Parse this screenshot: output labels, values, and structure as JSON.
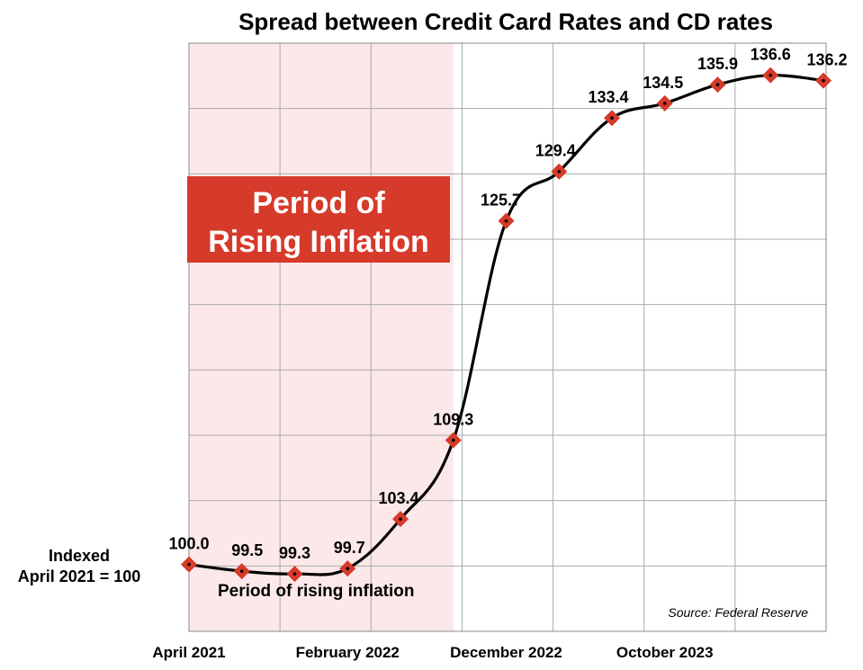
{
  "colors": {
    "shade": "#fce8e8",
    "grid": "#aaaaaa",
    "line": "#000000",
    "marker": "#d63a2a",
    "box": "#d63a2a",
    "box_text": "#ffffff"
  },
  "index_label": [
    "Indexed",
    "April 2021 = 100"
  ],
  "shaded_region_note": "Period of rising inflation",
  "callout": [
    "Period of",
    "Rising Inflation"
  ],
  "source": "Source: Federal Reserve",
  "chart_data": {
    "type": "line",
    "title": "Spread between Credit Card Rates and CD rates",
    "xlabel": "",
    "ylabel": "",
    "x_tick_labels": [
      "April 2021",
      "February 2022",
      "December 2022",
      "October 2023"
    ],
    "ylim": [
      95,
      139
    ],
    "grid": true,
    "series": [
      {
        "values": [
          100.0,
          99.5,
          99.3,
          99.7,
          103.4,
          109.3,
          125.7,
          129.4,
          133.4,
          134.5,
          135.9,
          136.6,
          136.2
        ],
        "labels": [
          "100.0",
          "99.5",
          "99.3",
          "99.7",
          "103.4",
          "109.3",
          "125.7",
          "129.4",
          "133.4",
          "134.5",
          "135.9",
          "136.6",
          "136.2"
        ]
      }
    ],
    "shaded_range_points": [
      0,
      5
    ]
  }
}
